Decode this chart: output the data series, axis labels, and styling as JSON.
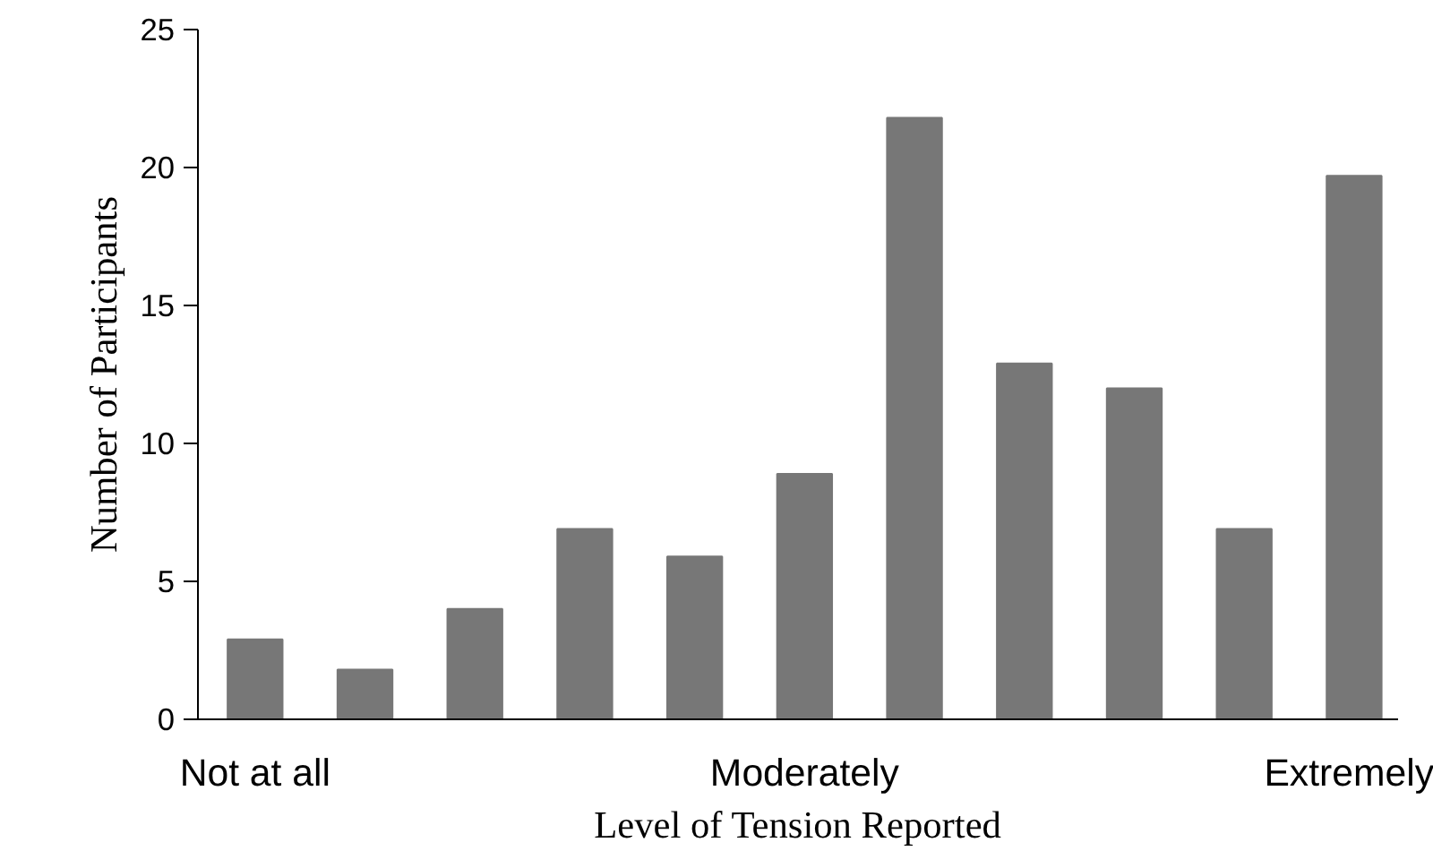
{
  "chart_data": {
    "type": "bar",
    "xlabel": "Level of Tension Reported",
    "ylabel": "Number of Participants",
    "categories": [
      "Not at all",
      null,
      null,
      null,
      null,
      "Moderately",
      null,
      null,
      null,
      null,
      "Extremely"
    ],
    "values": [
      2.9,
      1.8,
      4,
      6.9,
      5.9,
      8.9,
      21.8,
      12.9,
      12,
      6.9,
      19.7
    ],
    "color": "#777777",
    "ylim": [
      0,
      25
    ],
    "yticks": [
      0,
      5,
      10,
      15,
      20,
      25
    ],
    "grid": false
  }
}
